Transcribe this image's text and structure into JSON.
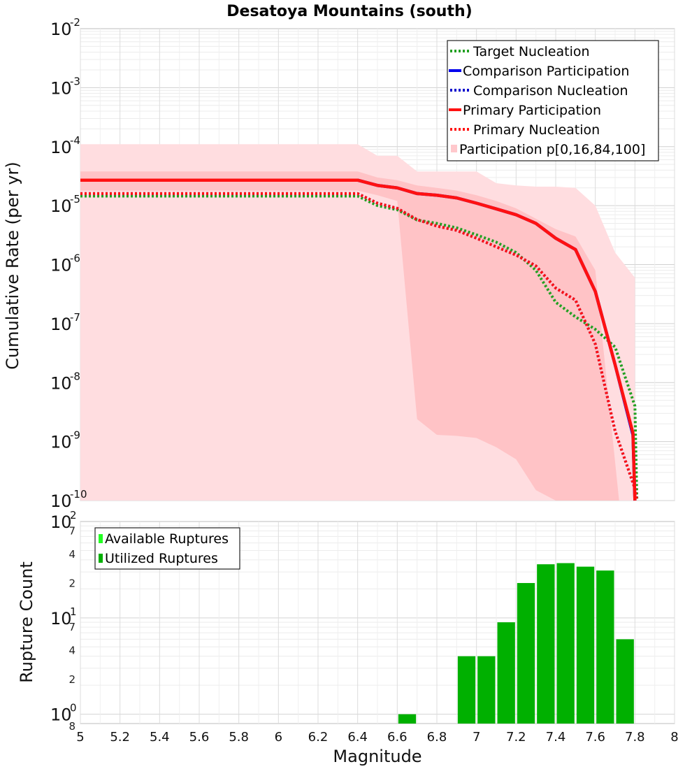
{
  "chart_data": [
    {
      "type": "line",
      "title": "Desatoya Mountains (south)",
      "xlabel": "Magnitude",
      "ylabel": "Cumulative Rate (per yr)",
      "xlim": [
        5,
        8
      ],
      "yscale": "log",
      "ylim": [
        1e-10,
        0.01
      ],
      "ytick_exponents": [
        -10,
        -9,
        -8,
        -7,
        -6,
        -5,
        -4,
        -3,
        -2
      ],
      "grid": true,
      "legend_position": "top-right",
      "legend": [
        {
          "label": "Target Nucleation",
          "color": "#22a022",
          "style": "dotted"
        },
        {
          "label": "Comparison Participation",
          "color": "#0000ee",
          "style": "solid"
        },
        {
          "label": "Comparison Nucleation",
          "color": "#0000cc",
          "style": "dotted"
        },
        {
          "label": "Primary Participation",
          "color": "#ff1111",
          "style": "solid"
        },
        {
          "label": "Primary Nucleation",
          "color": "#ff1111",
          "style": "dotted"
        },
        {
          "label": "Participation p[0,16,84,100]",
          "color": "#ffc8cc",
          "style": "band"
        }
      ],
      "series": [
        {
          "name": "Participation p[0,100]",
          "type": "band",
          "color": "#ffdde0",
          "x": [
            5.0,
            6.4,
            6.5,
            6.6,
            6.7,
            6.8,
            6.9,
            7.0,
            7.1,
            7.2,
            7.3,
            7.4,
            7.5,
            7.6,
            7.7,
            7.8
          ],
          "upper": [
            0.00011,
            0.00011,
            7e-05,
            7e-05,
            3.8e-05,
            3.8e-05,
            3.8e-05,
            3.8e-05,
            2.4e-05,
            2.2e-05,
            2.1e-05,
            2.1e-05,
            2e-05,
            1e-05,
            1.6e-06,
            6e-07
          ],
          "lower": [
            1e-10,
            1e-10,
            1e-10,
            1e-10,
            1e-10,
            1e-10,
            1e-10,
            1e-10,
            1e-10,
            1e-10,
            1e-10,
            1e-10,
            1e-10,
            1e-10,
            1e-10,
            1e-10
          ]
        },
        {
          "name": "Participation p[16,84]",
          "type": "band",
          "color": "#ffc3c6",
          "x": [
            5.0,
            6.4,
            6.5,
            6.6,
            6.7,
            6.8,
            6.9,
            7.0,
            7.1,
            7.2,
            7.3,
            7.4,
            7.5,
            7.6,
            7.72
          ],
          "upper": [
            3.8e-05,
            3.8e-05,
            3e-05,
            2.7e-05,
            2.2e-05,
            2e-05,
            1.8e-05,
            1.5e-05,
            1.2e-05,
            9e-06,
            6e-06,
            4e-06,
            3e-06,
            8e-07,
            1e-10
          ],
          "lower": [
            1.8e-05,
            1.8e-05,
            1.5e-05,
            1.2e-05,
            2.4e-09,
            1.3e-09,
            1.25e-09,
            1.15e-09,
            8e-10,
            5e-10,
            1.5e-10,
            1e-10,
            1e-10,
            1e-10,
            1e-10
          ]
        },
        {
          "name": "Target Nucleation",
          "type": "line",
          "color": "#22a022",
          "style": "dotted",
          "x": [
            5.0,
            6.4,
            6.5,
            6.6,
            6.7,
            6.8,
            6.9,
            7.0,
            7.1,
            7.2,
            7.3,
            7.4,
            7.5,
            7.6,
            7.7,
            7.8,
            7.81
          ],
          "y": [
            1.45e-05,
            1.45e-05,
            1e-05,
            8.5e-06,
            5.7e-06,
            5e-06,
            4.2e-06,
            3.2e-06,
            2.4e-06,
            1.6e-06,
            8e-07,
            2.3e-07,
            1.3e-07,
            8e-08,
            4e-08,
            4e-09,
            1e-10
          ]
        },
        {
          "name": "Comparison Participation",
          "type": "line",
          "color": "#0000ee",
          "style": "solid",
          "x": [
            5.0,
            6.4,
            6.5,
            6.6,
            6.7,
            6.8,
            6.9,
            7.0,
            7.1,
            7.2,
            7.3,
            7.4,
            7.5,
            7.6,
            7.7,
            7.79,
            7.8
          ],
          "y": [
            2.7e-05,
            2.7e-05,
            2.2e-05,
            2e-05,
            1.6e-05,
            1.5e-05,
            1.35e-05,
            1.1e-05,
            8.8e-06,
            7e-06,
            5e-06,
            2.8e-06,
            1.8e-06,
            3.5e-07,
            2e-08,
            1.3e-09,
            1e-10
          ]
        },
        {
          "name": "Comparison Nucleation",
          "type": "line",
          "color": "#0000cc",
          "style": "dotted",
          "x": [
            5.0,
            6.4,
            6.5,
            6.6,
            6.7,
            6.8,
            6.9,
            7.0,
            7.1,
            7.2,
            7.3,
            7.4,
            7.5,
            7.6,
            7.7,
            7.8,
            7.81
          ],
          "y": [
            1.6e-05,
            1.6e-05,
            1.1e-05,
            9e-06,
            5.8e-06,
            4.5e-06,
            3.8e-06,
            2.8e-06,
            2e-06,
            1.45e-06,
            9.5e-07,
            4e-07,
            2.5e-07,
            4.5e-08,
            1.5e-09,
            1.6e-10,
            1e-10
          ]
        },
        {
          "name": "Primary Participation",
          "type": "line",
          "color": "#ff1111",
          "style": "solid",
          "x": [
            5.0,
            6.4,
            6.5,
            6.6,
            6.7,
            6.8,
            6.9,
            7.0,
            7.1,
            7.2,
            7.3,
            7.4,
            7.5,
            7.6,
            7.7,
            7.79,
            7.8
          ],
          "y": [
            2.7e-05,
            2.7e-05,
            2.2e-05,
            2e-05,
            1.6e-05,
            1.5e-05,
            1.35e-05,
            1.1e-05,
            8.8e-06,
            7e-06,
            5e-06,
            2.8e-06,
            1.8e-06,
            3.5e-07,
            2e-08,
            1.4e-09,
            1e-10
          ]
        },
        {
          "name": "Primary Nucleation",
          "type": "line",
          "color": "#ff1111",
          "style": "dotted",
          "x": [
            5.0,
            6.4,
            6.5,
            6.6,
            6.7,
            6.8,
            6.9,
            7.0,
            7.1,
            7.2,
            7.3,
            7.4,
            7.5,
            7.6,
            7.7,
            7.8,
            7.81
          ],
          "y": [
            1.6e-05,
            1.6e-05,
            1.1e-05,
            9e-06,
            5.8e-06,
            4.5e-06,
            3.8e-06,
            2.8e-06,
            2e-06,
            1.45e-06,
            9.5e-07,
            4e-07,
            2.5e-07,
            4.5e-08,
            1.5e-09,
            1.6e-10,
            1e-10
          ]
        }
      ]
    },
    {
      "type": "bar",
      "xlabel": "Magnitude",
      "ylabel": "Rupture Count",
      "xlim": [
        5,
        8
      ],
      "yscale": "log",
      "ylim": [
        0.8,
        100
      ],
      "x_ticks": [
        "5",
        "5.2",
        "5.4",
        "5.6",
        "5.8",
        "6",
        "6.2",
        "6.4",
        "6.6",
        "6.8",
        "7",
        "7.2",
        "7.4",
        "7.6",
        "7.8",
        "8"
      ],
      "y_major_base": "10",
      "y_major_exponents": [
        "0",
        "1",
        "2"
      ],
      "y_minor_ticks": [
        {
          "label": "8",
          "value": 0.8
        },
        {
          "label": "2",
          "value": 2
        },
        {
          "label": "4",
          "value": 4
        },
        {
          "label": "7",
          "value": 7
        },
        {
          "label": "2",
          "value": 20
        },
        {
          "label": "4",
          "value": 40
        },
        {
          "label": "7",
          "value": 70
        }
      ],
      "grid": true,
      "legend_position": "top-left",
      "legend": [
        {
          "label": "Available Ruptures",
          "color": "#22ff22"
        },
        {
          "label": "Utilized Ruptures",
          "color": "#00b000"
        }
      ],
      "bar_width": 0.1,
      "series": [
        {
          "name": "Utilized Ruptures",
          "color": "#00b000",
          "bin_centers": [
            6.65,
            6.95,
            7.05,
            7.15,
            7.25,
            7.35,
            7.45,
            7.55,
            7.65,
            7.75
          ],
          "values": [
            1,
            4,
            4,
            9,
            23,
            36,
            37,
            34,
            31,
            6
          ]
        }
      ]
    }
  ]
}
